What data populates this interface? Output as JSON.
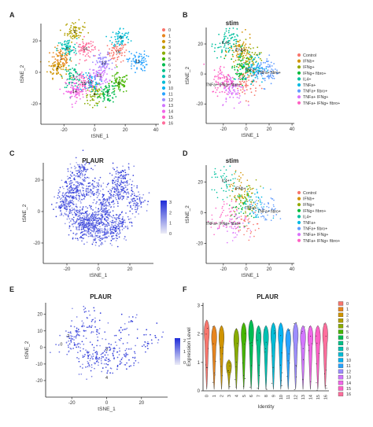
{
  "panels": {
    "A": {
      "letter": "A",
      "title": "",
      "xlabel": "tSNE_1",
      "ylabel": "tSNE_2",
      "xticks": [
        "-20",
        "0",
        "20",
        "40"
      ],
      "yticks": [
        "20",
        "0",
        "-20"
      ],
      "legend": [
        "0",
        "1",
        "2",
        "3",
        "4",
        "5",
        "6",
        "7",
        "8",
        "9",
        "10",
        "11",
        "12",
        "13",
        "14",
        "15",
        "16"
      ],
      "cluster_labels": [
        "3",
        "9",
        "1",
        "8",
        "16",
        "0",
        "11",
        "5",
        "12",
        "2",
        "10",
        "14",
        "13",
        "7",
        "15",
        "6",
        "4"
      ]
    },
    "B": {
      "letter": "B",
      "title": "stim",
      "xlabel": "tSNE_1",
      "ylabel": "tSNE_2",
      "xticks": [
        "-20",
        "0",
        "20",
        "40"
      ],
      "yticks": [
        "20",
        "0",
        "-20"
      ],
      "legend": [
        "Control",
        "IFNb+",
        "IFNg+",
        "IFNg+ fibro+",
        "IL4+",
        "TNFa+",
        "TNFa+ fibro+",
        "TNFa+ IFNg+",
        "TNFa+ IFNg+ fibro+"
      ],
      "annotations": [
        "IL4+",
        "IFNb+",
        "TNFa+",
        "TNFa+ fibro+",
        "TNFa+ IFNg+ fibro+"
      ]
    },
    "C": {
      "letter": "C",
      "title": "PLAUR",
      "xlabel": "tSNE_1",
      "ylabel": "tSNE_2",
      "xticks": [
        "-20",
        "0",
        "20"
      ],
      "yticks": [
        "20",
        "0",
        "-20"
      ],
      "colorbar_ticks": [
        "3",
        "2",
        "1",
        "0"
      ]
    },
    "D": {
      "letter": "D",
      "title": "stim",
      "xlabel": "tSNE_1",
      "ylabel": "tSNE_2",
      "xticks": [
        "-20",
        "0",
        "20",
        "40"
      ],
      "yticks": [
        "20",
        "0",
        "-20"
      ],
      "legend": [
        "Control",
        "IFNb+",
        "IFNg+",
        "IFNg+ fibro+",
        "IL4+",
        "TNFa+",
        "TNFa+ fibro+",
        "TNFa+ IFNg+",
        "TNFa+ IFNg+ fibro+"
      ],
      "annotations": [
        "IL4+",
        "IFNb+",
        "TNFa+",
        "TNFa+ fibro+",
        "TNFa+ IFNg+ fibro+"
      ]
    },
    "E": {
      "letter": "E",
      "title": "PLAUR",
      "xlabel": "tSNE_1",
      "ylabel": "tSNE_2",
      "xticks": [
        "-20",
        "0",
        "20"
      ],
      "yticks": [
        "20",
        "10",
        "0",
        "-10",
        "-20"
      ],
      "colorbar_ticks": [
        "2",
        "1",
        "0"
      ],
      "cluster_labels": [
        "2",
        "0",
        "3",
        "4"
      ]
    },
    "F": {
      "letter": "F",
      "title": "PLAUR",
      "xlabel": "Identity",
      "ylabel": "Expression Level",
      "yticks": [
        "3",
        "2",
        "1",
        "0"
      ]
    }
  },
  "colors": {
    "clusters": [
      "#F8766D",
      "#E7851E",
      "#D09400",
      "#B2A100",
      "#89AC00",
      "#45B500",
      "#00BC51",
      "#00C087",
      "#00C0B2",
      "#00BCD6",
      "#00B3F2",
      "#29A3FF",
      "#9C8DFF",
      "#D277FF",
      "#F166E8",
      "#FF61C7",
      "#FF6E9C"
    ],
    "stim": [
      "#F8766D",
      "#D39200",
      "#93AA00",
      "#00BA38",
      "#00C19F",
      "#00B9E3",
      "#619CFF",
      "#DB72FB",
      "#FF61C3"
    ],
    "gradient_low": "#ECECF6",
    "gradient_high": "#1E2BD8"
  },
  "chart_data": [
    {
      "panel": "A",
      "type": "scatter",
      "title": "",
      "xlabel": "tSNE_1",
      "ylabel": "tSNE_2",
      "xlim": [
        -35,
        42
      ],
      "ylim": [
        -33,
        31
      ],
      "series": [
        {
          "name": "0",
          "centroid": [
            15,
            13
          ]
        },
        {
          "name": "1",
          "centroid": [
            -22,
            9
          ]
        },
        {
          "name": "2",
          "centroid": [
            -24,
            3
          ]
        },
        {
          "name": "3",
          "centroid": [
            -13,
            26
          ]
        },
        {
          "name": "4",
          "centroid": [
            0,
            -14
          ]
        },
        {
          "name": "5",
          "centroid": [
            16,
            -7
          ]
        },
        {
          "name": "6",
          "centroid": [
            9,
            -13
          ]
        },
        {
          "name": "7",
          "centroid": [
            -14,
            -3
          ]
        },
        {
          "name": "8",
          "centroid": [
            -18,
            15
          ]
        },
        {
          "name": "9",
          "centroid": [
            17,
            22
          ]
        },
        {
          "name": "10",
          "centroid": [
            -3,
            -6
          ]
        },
        {
          "name": "11",
          "centroid": [
            28,
            7
          ]
        },
        {
          "name": "12",
          "centroid": [
            6,
            6
          ]
        },
        {
          "name": "13",
          "centroid": [
            3,
            -2
          ]
        },
        {
          "name": "14",
          "centroid": [
            -13,
            -12
          ]
        },
        {
          "name": "15",
          "centroid": [
            -7,
            -7
          ]
        },
        {
          "name": "16",
          "centroid": [
            -6,
            15
          ]
        }
      ]
    },
    {
      "panel": "B",
      "type": "scatter",
      "title": "stim",
      "xlabel": "tSNE_1",
      "ylabel": "tSNE_2",
      "xlim": [
        -35,
        42
      ],
      "ylim": [
        -33,
        31
      ],
      "series": [
        {
          "name": "Control",
          "centroid": [
            0,
            -6
          ]
        },
        {
          "name": "IFNb+",
          "centroid": [
            -5,
            15
          ]
        },
        {
          "name": "IFNg+",
          "centroid": [
            2,
            10
          ]
        },
        {
          "name": "IFNg+ fibro+",
          "centroid": [
            -4,
            4
          ]
        },
        {
          "name": "IL4+",
          "centroid": [
            -18,
            20
          ]
        },
        {
          "name": "TNFa+",
          "centroid": [
            7,
            4
          ]
        },
        {
          "name": "TNFa+ fibro+",
          "centroid": [
            18,
            2
          ]
        },
        {
          "name": "TNFa+ IFNg+",
          "centroid": [
            -12,
            -10
          ]
        },
        {
          "name": "TNFa+ IFNg+ fibro+",
          "centroid": [
            -20,
            -4
          ]
        }
      ]
    },
    {
      "panel": "C",
      "type": "scatter",
      "title": "PLAUR",
      "xlabel": "tSNE_1",
      "ylabel": "tSNE_2",
      "xlim": [
        -35,
        35
      ],
      "ylim": [
        -33,
        31
      ],
      "colorbar": {
        "min": 0,
        "max": 3
      }
    },
    {
      "panel": "D",
      "type": "scatter",
      "title": "stim",
      "xlabel": "tSNE_1",
      "ylabel": "tSNE_2",
      "xlim": [
        -35,
        42
      ],
      "ylim": [
        -33,
        31
      ],
      "series": [
        "Control",
        "IFNb+",
        "IFNg+",
        "IFNg+ fibro+",
        "IL4+",
        "TNFa+",
        "TNFa+ fibro+",
        "TNFa+ IFNg+",
        "TNFa+ IFNg+ fibro+"
      ]
    },
    {
      "panel": "E",
      "type": "scatter",
      "title": "PLAUR",
      "xlabel": "tSNE_1",
      "ylabel": "tSNE_2",
      "xlim": [
        -35,
        35
      ],
      "ylim": [
        -30,
        27
      ],
      "colorbar": {
        "min": 0,
        "max": 2
      }
    },
    {
      "panel": "F",
      "type": "violin",
      "title": "PLAUR",
      "xlabel": "Identity",
      "ylabel": "Expression Level",
      "categories": [
        "0",
        "1",
        "2",
        "3",
        "4",
        "5",
        "6",
        "7",
        "8",
        "9",
        "10",
        "11",
        "12",
        "13",
        "14",
        "15",
        "16"
      ],
      "ylim": [
        0,
        3.1
      ],
      "violin_max": [
        2.5,
        2.3,
        2.3,
        1.1,
        2.2,
        2.4,
        2.5,
        2.3,
        2.3,
        2.4,
        2.4,
        2.2,
        2.4,
        2.3,
        2.3,
        2.3,
        2.4
      ]
    }
  ]
}
